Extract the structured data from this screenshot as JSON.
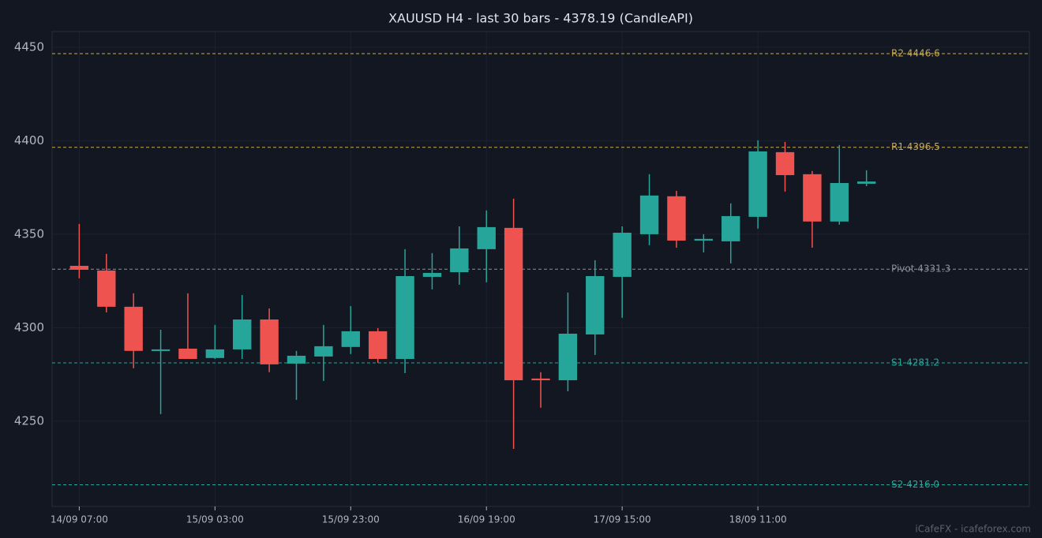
{
  "chart_data": {
    "type": "candlestick",
    "title": "XAUUSD H4 - last 30 bars - 4378.19 (CandleAPI)",
    "categories": [
      "14/09 07:00",
      null,
      null,
      null,
      null,
      "15/09 03:00",
      null,
      null,
      null,
      null,
      "15/09 23:00",
      null,
      null,
      null,
      null,
      "16/09 19:00",
      null,
      null,
      null,
      null,
      "17/09 15:00",
      null,
      null,
      null,
      null,
      "18/09 11:00",
      null,
      null,
      null,
      null
    ],
    "open": [
      4333.1,
      4330.6,
      4311.2,
      4287.6,
      4288.8,
      4283.8,
      4288.4,
      4304.4,
      4280.8,
      4284.6,
      4289.7,
      4298.1,
      4283.3,
      4327.2,
      4329.7,
      4342.0,
      4353.4,
      4272.8,
      4271.9,
      4296.4,
      4327.2,
      4350.0,
      4370.3,
      4346.6,
      4346.2,
      4359.3,
      4393.9,
      4382.1,
      4356.8,
      4377.0
    ],
    "high": [
      4355.5,
      4339.5,
      4318.4,
      4298.9,
      4318.4,
      4301.5,
      4317.5,
      4310.3,
      4287.6,
      4301.5,
      4311.6,
      4299.8,
      4342.0,
      4339.9,
      4354.2,
      4362.7,
      4369.0,
      4276.2,
      4318.8,
      4336.1,
      4354.2,
      4382.1,
      4373.2,
      4350.0,
      4366.5,
      4400.2,
      4399.4,
      4383.8,
      4397.7,
      4384.2
    ],
    "low": [
      4326.4,
      4308.2,
      4278.3,
      4253.8,
      4283.3,
      4283.3,
      4283.3,
      4276.2,
      4261.4,
      4271.5,
      4285.9,
      4281.2,
      4275.7,
      4320.5,
      4323.0,
      4324.3,
      4235.2,
      4257.2,
      4266.0,
      4285.4,
      4305.3,
      4344.1,
      4342.8,
      4340.3,
      4334.4,
      4353.0,
      4372.8,
      4342.8,
      4355.1,
      4375.7
    ],
    "close": [
      4331.0,
      4311.2,
      4287.6,
      4288.4,
      4283.3,
      4288.4,
      4304.4,
      4280.4,
      4285.0,
      4290.1,
      4298.1,
      4283.3,
      4327.6,
      4329.3,
      4342.4,
      4353.8,
      4271.9,
      4271.9,
      4296.8,
      4327.6,
      4350.8,
      4370.7,
      4346.6,
      4347.5,
      4359.7,
      4394.3,
      4381.6,
      4356.8,
      4377.4,
      4378.19
    ],
    "up_color": "#26a69a",
    "down_color": "#ef5350",
    "ylim": [
      4204.4,
      4458.4
    ],
    "yticks": [
      4250,
      4300,
      4350,
      4400,
      4450
    ],
    "grid": true,
    "levels": [
      {
        "label": "R2 4446.6",
        "value": 4446.6,
        "color": "#c9a94e"
      },
      {
        "label": "R1 4396.5",
        "value": 4396.5,
        "color": "#c9a94e"
      },
      {
        "label": "Pivot 4331.3",
        "value": 4331.3,
        "color": "#8b8f99"
      },
      {
        "label": "S1 4281.2",
        "value": 4281.2,
        "color": "#26a69a"
      },
      {
        "label": "S2 4216.0",
        "value": 4216.0,
        "color": "#26a69a"
      }
    ],
    "watermark": "iCafeFX - icafeforex.com"
  }
}
